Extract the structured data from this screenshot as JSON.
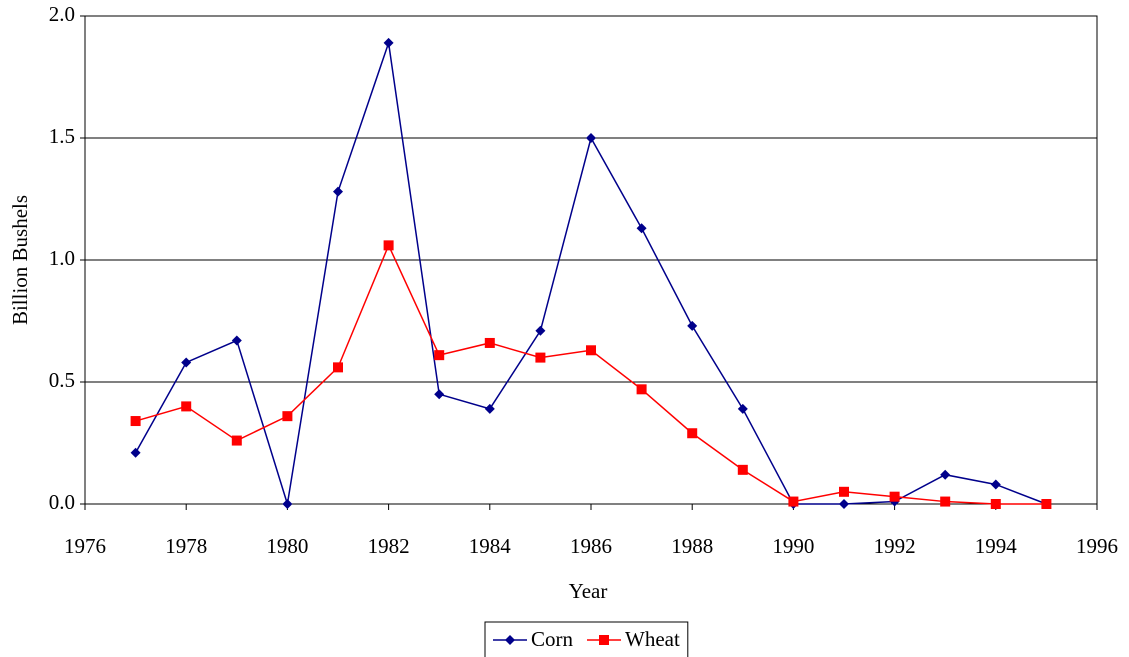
{
  "chart_data": {
    "type": "line",
    "x_label": "Year",
    "y_label": "Billion Bushels",
    "x": [
      1977,
      1978,
      1979,
      1980,
      1981,
      1982,
      1983,
      1984,
      1985,
      1986,
      1987,
      1988,
      1989,
      1990,
      1991,
      1992,
      1993,
      1994,
      1995
    ],
    "series": [
      {
        "name": "Corn",
        "color": "#00008b",
        "marker": "diamond",
        "values": [
          0.21,
          0.58,
          0.67,
          0,
          1.28,
          1.89,
          0.45,
          0.39,
          0.71,
          1.5,
          1.13,
          0.73,
          0.39,
          0,
          0,
          0.01,
          0.12,
          0.08,
          0
        ]
      },
      {
        "name": "Wheat",
        "color": "#ff0000",
        "marker": "square",
        "values": [
          0.34,
          0.4,
          0.26,
          0.36,
          0.56,
          1.06,
          0.61,
          0.66,
          0.6,
          0.63,
          0.47,
          0.29,
          0.14,
          0.01,
          0.05,
          0.03,
          0.01,
          0,
          0
        ]
      }
    ],
    "xlim": [
      1976,
      1996
    ],
    "xticks": [
      1976,
      1978,
      1980,
      1982,
      1984,
      1986,
      1988,
      1990,
      1992,
      1994,
      1996
    ],
    "ylim": [
      0,
      2
    ],
    "yticks": [
      {
        "value": 0,
        "label": "0.0"
      },
      {
        "value": 0.5,
        "label": "0.5"
      },
      {
        "value": 1,
        "label": "1.0"
      },
      {
        "value": 1.5,
        "label": "1.5"
      },
      {
        "value": 2,
        "label": "2.0"
      }
    ],
    "grid": true,
    "legend": "bottom"
  }
}
